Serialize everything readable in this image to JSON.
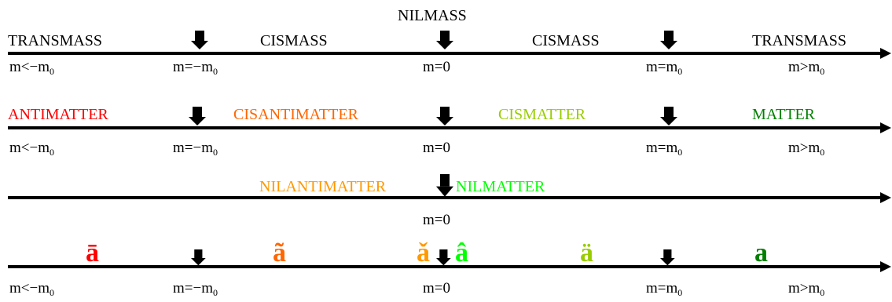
{
  "colors": {
    "antimatter": "#ff0000",
    "cisantimatter": "#ff6600",
    "cismatter": "#99cc00",
    "matter": "#008000",
    "nilantimatter": "#ff9900",
    "nilmatter": "#00ff00",
    "line": "#000000"
  },
  "icons": {
    "marker": "down-arrow-icon",
    "axis_head": "arrowhead-icon"
  },
  "row1": {
    "top_label": "NILMASS",
    "labels": [
      "TRANSMASS",
      "CISMASS",
      "CISMASS",
      "TRANSMASS"
    ],
    "values": [
      {
        "base": "m<−m",
        "sub": "0"
      },
      {
        "base": "m=−m",
        "sub": "0"
      },
      {
        "base": "m=0",
        "sub": ""
      },
      {
        "base": "m=m",
        "sub": "0"
      },
      {
        "base": "m>m",
        "sub": "0"
      }
    ]
  },
  "row2": {
    "labels": [
      "ANTIMATTER",
      "CISANTIMATTER",
      "CISMATTER",
      "MATTER"
    ],
    "values": [
      {
        "base": "m<−m",
        "sub": "0"
      },
      {
        "base": "m=−m",
        "sub": "0"
      },
      {
        "base": "m=0",
        "sub": ""
      },
      {
        "base": "m=m",
        "sub": "0"
      },
      {
        "base": "m>m",
        "sub": "0"
      }
    ]
  },
  "row3": {
    "labels": [
      "NILANTIMATTER",
      "NILMATTER"
    ],
    "value": "m=0"
  },
  "row4": {
    "glyphs": [
      "ā",
      "ã",
      "ǎ",
      "â",
      "ä",
      "a"
    ],
    "values": [
      {
        "base": "m<−m",
        "sub": "0"
      },
      {
        "base": "m=−m",
        "sub": "0"
      },
      {
        "base": "m=0",
        "sub": ""
      },
      {
        "base": "m=m",
        "sub": "0"
      },
      {
        "base": "m>m",
        "sub": "0"
      }
    ]
  }
}
